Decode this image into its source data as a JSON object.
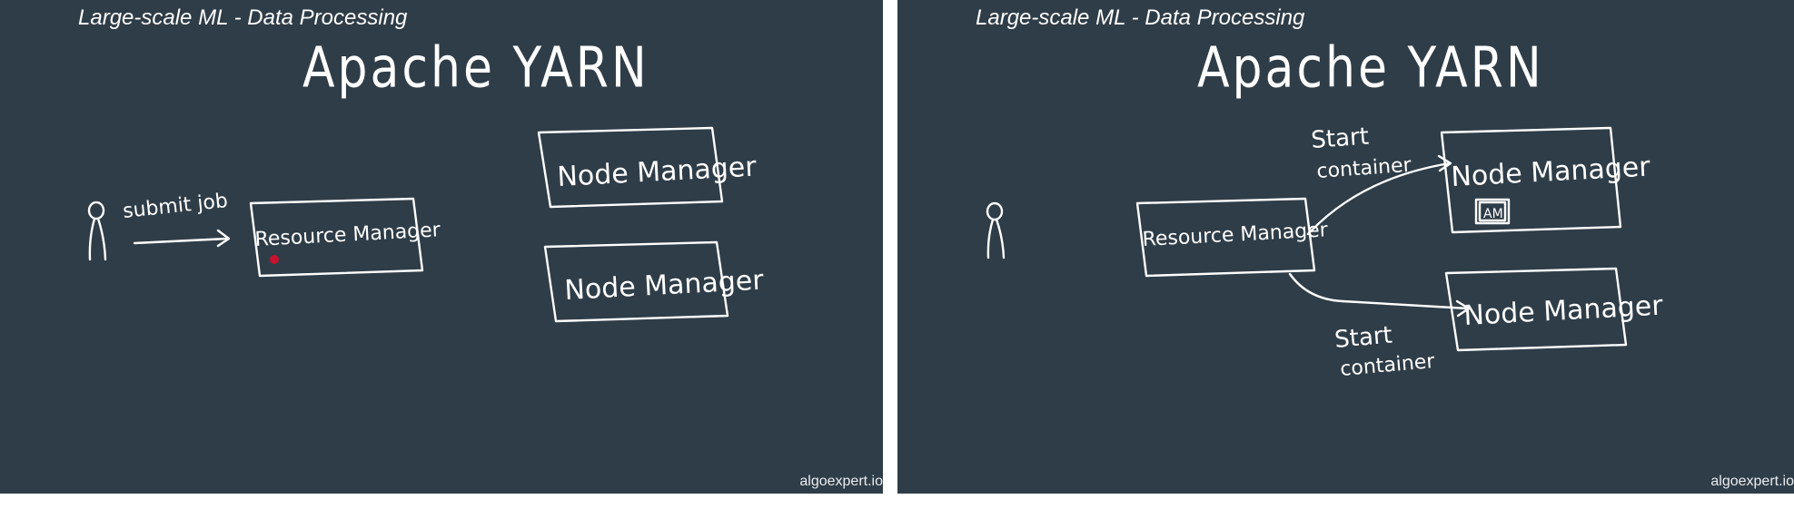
{
  "slides": [
    {
      "header": "Large-scale ML - Data Processing",
      "title": "Apache YARN",
      "labels": {
        "user_action": "submit job",
        "resource_manager": "Resource Manager",
        "node_manager_1": "Node Manager",
        "node_manager_2": "Node Manager"
      },
      "watermark": "algoexpert.io"
    },
    {
      "header": "Large-scale ML - Data Processing",
      "title": "Apache YARN",
      "labels": {
        "resource_manager": "Resource Manager",
        "node_manager_1": "Node Manager",
        "node_manager_2": "Node Manager",
        "app_master": "AM",
        "start_top_line1": "Start",
        "start_top_line2": "container",
        "start_bottom_line1": "Start",
        "start_bottom_line2": "container"
      },
      "watermark": "algoexpert.io"
    }
  ],
  "colors": {
    "board": "#2f3d48",
    "chalk": "#ffffff",
    "pointer": "#c4122f"
  },
  "icons": [
    "user-icon",
    "laser-pointer-dot"
  ]
}
